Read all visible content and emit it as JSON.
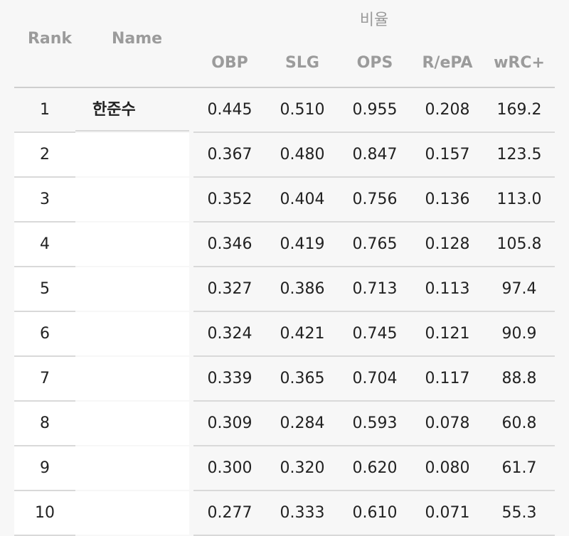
{
  "header": {
    "rank": "Rank",
    "name": "Name",
    "group": "비율",
    "columns": [
      "OBP",
      "SLG",
      "OPS",
      "R/ePA",
      "wRC+"
    ]
  },
  "rows": [
    {
      "rank": "1",
      "name": "한준수",
      "obp": "0.445",
      "slg": "0.510",
      "ops": "0.955",
      "repa": "0.208",
      "wrc": "169.2"
    },
    {
      "rank": "2",
      "name": "",
      "obp": "0.367",
      "slg": "0.480",
      "ops": "0.847",
      "repa": "0.157",
      "wrc": "123.5"
    },
    {
      "rank": "3",
      "name": "",
      "obp": "0.352",
      "slg": "0.404",
      "ops": "0.756",
      "repa": "0.136",
      "wrc": "113.0"
    },
    {
      "rank": "4",
      "name": "",
      "obp": "0.346",
      "slg": "0.419",
      "ops": "0.765",
      "repa": "0.128",
      "wrc": "105.8"
    },
    {
      "rank": "5",
      "name": "",
      "obp": "0.327",
      "slg": "0.386",
      "ops": "0.713",
      "repa": "0.113",
      "wrc": "97.4"
    },
    {
      "rank": "6",
      "name": "",
      "obp": "0.324",
      "slg": "0.421",
      "ops": "0.745",
      "repa": "0.121",
      "wrc": "90.9"
    },
    {
      "rank": "7",
      "name": "",
      "obp": "0.339",
      "slg": "0.365",
      "ops": "0.704",
      "repa": "0.117",
      "wrc": "88.8"
    },
    {
      "rank": "8",
      "name": "",
      "obp": "0.309",
      "slg": "0.284",
      "ops": "0.593",
      "repa": "0.078",
      "wrc": "60.8"
    },
    {
      "rank": "9",
      "name": "",
      "obp": "0.300",
      "slg": "0.320",
      "ops": "0.620",
      "repa": "0.080",
      "wrc": "61.7"
    },
    {
      "rank": "10",
      "name": "",
      "obp": "0.277",
      "slg": "0.333",
      "ops": "0.610",
      "repa": "0.071",
      "wrc": "55.3"
    }
  ]
}
